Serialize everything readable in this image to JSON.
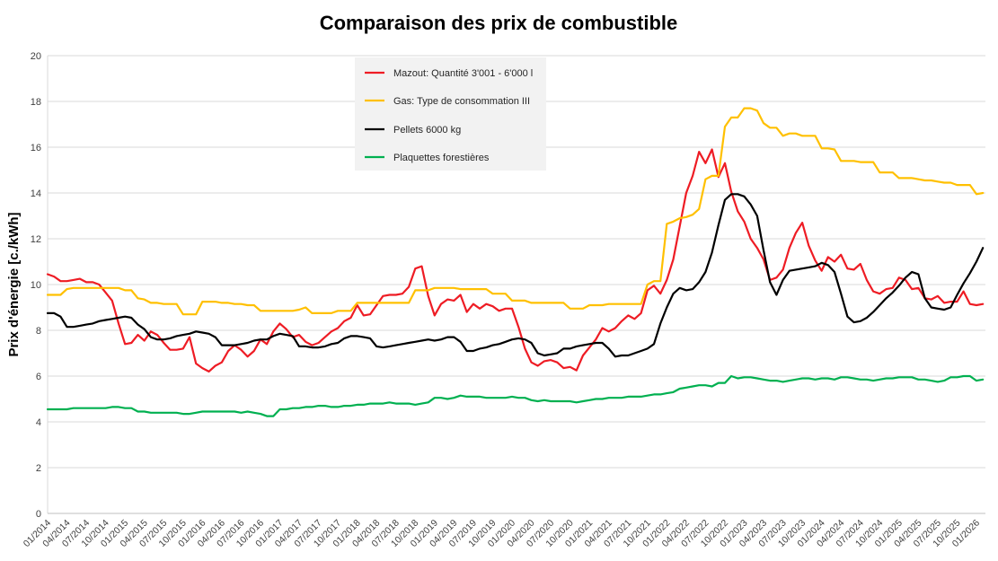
{
  "chart_data": {
    "type": "line",
    "title": "Comparaison des prix de combustible",
    "xlabel": "",
    "ylabel": "Prix d'énergie [c./kWh]",
    "ylim": [
      0,
      20
    ],
    "yticks": [
      0,
      2,
      4,
      6,
      8,
      10,
      12,
      14,
      16,
      18,
      20
    ],
    "grid": true,
    "legend": "top-center",
    "x": [
      "01/2014",
      "02/2014",
      "03/2014",
      "04/2014",
      "05/2014",
      "06/2014",
      "07/2014",
      "08/2014",
      "09/2014",
      "10/2014",
      "11/2014",
      "12/2014",
      "01/2015",
      "02/2015",
      "03/2015",
      "04/2015",
      "05/2015",
      "06/2015",
      "07/2015",
      "08/2015",
      "09/2015",
      "10/2015",
      "11/2015",
      "12/2015",
      "01/2016",
      "02/2016",
      "03/2016",
      "04/2016",
      "05/2016",
      "06/2016",
      "07/2016",
      "08/2016",
      "09/2016",
      "10/2016",
      "11/2016",
      "12/2016",
      "01/2017",
      "02/2017",
      "03/2017",
      "04/2017",
      "05/2017",
      "06/2017",
      "07/2017",
      "08/2017",
      "09/2017",
      "10/2017",
      "11/2017",
      "12/2017",
      "01/2018",
      "02/2018",
      "03/2018",
      "04/2018",
      "05/2018",
      "06/2018",
      "07/2018",
      "08/2018",
      "09/2018",
      "10/2018",
      "11/2018",
      "12/2018",
      "01/2019",
      "02/2019",
      "03/2019",
      "04/2019",
      "05/2019",
      "06/2019",
      "07/2019",
      "08/2019",
      "09/2019",
      "10/2019",
      "11/2019",
      "12/2019",
      "01/2020",
      "02/2020",
      "03/2020",
      "04/2020",
      "05/2020",
      "06/2020",
      "07/2020",
      "08/2020",
      "09/2020",
      "10/2020",
      "11/2020",
      "12/2020",
      "01/2021",
      "02/2021",
      "03/2021",
      "04/2021",
      "05/2021",
      "06/2021",
      "07/2021",
      "08/2021",
      "09/2021",
      "10/2021",
      "11/2021",
      "12/2021",
      "01/2022",
      "02/2022",
      "03/2022",
      "04/2022",
      "05/2022",
      "06/2022",
      "07/2022",
      "08/2022",
      "09/2022",
      "10/2022",
      "11/2022",
      "12/2022",
      "01/2023",
      "02/2023",
      "03/2023",
      "04/2023",
      "05/2023",
      "06/2023",
      "07/2023",
      "08/2023",
      "09/2023",
      "10/2023",
      "11/2023",
      "12/2023",
      "01/2024",
      "02/2024",
      "03/2024",
      "04/2024",
      "05/2024",
      "06/2024",
      "07/2024",
      "08/2024",
      "09/2024",
      "10/2024",
      "11/2024",
      "12/2024",
      "01/2025",
      "02/2025",
      "03/2025",
      "04/2025",
      "05/2025",
      "06/2025",
      "07/2025",
      "08/2025",
      "09/2025",
      "10/2025",
      "11/2025",
      "12/2025",
      "01/2026",
      "02/2026"
    ],
    "series": [
      {
        "name": "Mazout: Quantité 3'001 - 6'000 l",
        "color": "#ee1c24",
        "values": [
          10.45,
          10.35,
          10.15,
          10.15,
          10.2,
          10.25,
          10.1,
          10.1,
          10.0,
          9.65,
          9.3,
          8.3,
          7.4,
          7.45,
          7.8,
          7.55,
          7.95,
          7.8,
          7.45,
          7.15,
          7.15,
          7.2,
          7.7,
          6.55,
          6.35,
          6.2,
          6.45,
          6.6,
          7.1,
          7.35,
          7.15,
          6.85,
          7.1,
          7.6,
          7.4,
          7.95,
          8.3,
          8.05,
          7.7,
          7.8,
          7.5,
          7.35,
          7.45,
          7.7,
          7.95,
          8.1,
          8.4,
          8.55,
          9.1,
          8.65,
          8.7,
          9.1,
          9.5,
          9.55,
          9.55,
          9.6,
          9.9,
          10.7,
          10.8,
          9.5,
          8.65,
          9.15,
          9.35,
          9.3,
          9.55,
          8.8,
          9.15,
          8.95,
          9.15,
          9.05,
          8.85,
          8.95,
          8.95,
          8.15,
          7.2,
          6.6,
          6.45,
          6.65,
          6.7,
          6.6,
          6.35,
          6.4,
          6.25,
          6.9,
          7.25,
          7.6,
          8.1,
          7.95,
          8.1,
          8.4,
          8.65,
          8.5,
          8.75,
          9.75,
          9.95,
          9.6,
          10.2,
          11.1,
          12.55,
          14.0,
          14.75,
          15.8,
          15.3,
          15.9,
          14.7,
          15.3,
          14.05,
          13.2,
          12.75,
          12.0,
          11.6,
          11.1,
          10.2,
          10.3,
          10.65,
          11.6,
          12.25,
          12.7,
          11.7,
          11.05,
          10.6,
          11.2,
          11.0,
          11.3,
          10.7,
          10.65,
          10.9,
          10.2,
          9.7,
          9.6,
          9.8,
          9.85,
          10.3,
          10.2,
          9.8,
          9.85,
          9.4,
          9.35,
          9.5,
          9.2,
          9.25,
          9.25,
          9.7,
          9.15,
          9.1,
          9.15
        ]
      },
      {
        "name": "Gas: Type de consommation III",
        "color": "#ffc000",
        "values": [
          9.55,
          9.55,
          9.55,
          9.8,
          9.85,
          9.85,
          9.85,
          9.85,
          9.85,
          9.85,
          9.85,
          9.85,
          9.75,
          9.75,
          9.4,
          9.35,
          9.2,
          9.2,
          9.15,
          9.15,
          9.15,
          8.7,
          8.7,
          8.7,
          9.25,
          9.25,
          9.25,
          9.2,
          9.2,
          9.15,
          9.15,
          9.1,
          9.1,
          8.85,
          8.85,
          8.85,
          8.85,
          8.85,
          8.85,
          8.9,
          9.0,
          8.75,
          8.75,
          8.75,
          8.75,
          8.85,
          8.85,
          8.85,
          9.2,
          9.2,
          9.2,
          9.2,
          9.2,
          9.2,
          9.2,
          9.2,
          9.2,
          9.75,
          9.75,
          9.75,
          9.85,
          9.85,
          9.85,
          9.85,
          9.8,
          9.8,
          9.8,
          9.8,
          9.8,
          9.6,
          9.6,
          9.6,
          9.3,
          9.3,
          9.3,
          9.2,
          9.2,
          9.2,
          9.2,
          9.2,
          9.2,
          8.95,
          8.95,
          8.95,
          9.1,
          9.1,
          9.1,
          9.15,
          9.15,
          9.15,
          9.15,
          9.15,
          9.15,
          10.0,
          10.15,
          10.15,
          12.65,
          12.75,
          12.9,
          12.95,
          13.05,
          13.3,
          14.6,
          14.75,
          14.75,
          16.9,
          17.3,
          17.3,
          17.7,
          17.7,
          17.6,
          17.05,
          16.85,
          16.85,
          16.5,
          16.6,
          16.6,
          16.5,
          16.5,
          16.5,
          15.95,
          15.95,
          15.9,
          15.4,
          15.4,
          15.4,
          15.35,
          15.35,
          15.35,
          14.9,
          14.9,
          14.9,
          14.65,
          14.65,
          14.65,
          14.6,
          14.55,
          14.55,
          14.5,
          14.45,
          14.45,
          14.35,
          14.35,
          14.35,
          13.95,
          14.0
        ]
      },
      {
        "name": "Pellets 6000 kg",
        "color": "#000000",
        "values": [
          8.75,
          8.75,
          8.6,
          8.15,
          8.15,
          8.2,
          8.25,
          8.3,
          8.4,
          8.45,
          8.5,
          8.55,
          8.6,
          8.55,
          8.25,
          8.05,
          7.7,
          7.6,
          7.6,
          7.65,
          7.75,
          7.8,
          7.85,
          7.95,
          7.9,
          7.85,
          7.7,
          7.35,
          7.35,
          7.35,
          7.4,
          7.45,
          7.55,
          7.6,
          7.6,
          7.75,
          7.85,
          7.8,
          7.75,
          7.3,
          7.3,
          7.25,
          7.25,
          7.3,
          7.4,
          7.45,
          7.65,
          7.75,
          7.75,
          7.7,
          7.65,
          7.3,
          7.25,
          7.3,
          7.35,
          7.4,
          7.45,
          7.5,
          7.55,
          7.6,
          7.55,
          7.6,
          7.7,
          7.7,
          7.5,
          7.1,
          7.1,
          7.2,
          7.25,
          7.35,
          7.4,
          7.5,
          7.6,
          7.65,
          7.6,
          7.45,
          7.0,
          6.9,
          6.95,
          7.0,
          7.2,
          7.2,
          7.3,
          7.35,
          7.4,
          7.45,
          7.45,
          7.2,
          6.85,
          6.9,
          6.9,
          7.0,
          7.1,
          7.2,
          7.4,
          8.3,
          9.0,
          9.6,
          9.85,
          9.75,
          9.8,
          10.1,
          10.55,
          11.4,
          12.6,
          13.7,
          13.95,
          13.95,
          13.85,
          13.5,
          13.0,
          11.5,
          10.1,
          9.55,
          10.2,
          10.6,
          10.65,
          10.7,
          10.75,
          10.8,
          10.95,
          10.85,
          10.55,
          9.6,
          8.6,
          8.35,
          8.4,
          8.55,
          8.8,
          9.1,
          9.4,
          9.65,
          9.95,
          10.3,
          10.55,
          10.45,
          9.4,
          9.0,
          8.95,
          8.9,
          9.0,
          9.55,
          10.05,
          10.5,
          11.0,
          11.6
        ]
      },
      {
        "name": "Plaquettes forestières",
        "color": "#00b050",
        "values": [
          4.55,
          4.55,
          4.55,
          4.55,
          4.6,
          4.6,
          4.6,
          4.6,
          4.6,
          4.6,
          4.65,
          4.65,
          4.6,
          4.6,
          4.45,
          4.45,
          4.4,
          4.4,
          4.4,
          4.4,
          4.4,
          4.35,
          4.35,
          4.4,
          4.45,
          4.45,
          4.45,
          4.45,
          4.45,
          4.45,
          4.4,
          4.45,
          4.4,
          4.35,
          4.25,
          4.25,
          4.55,
          4.55,
          4.6,
          4.6,
          4.65,
          4.65,
          4.7,
          4.7,
          4.65,
          4.65,
          4.7,
          4.7,
          4.75,
          4.75,
          4.8,
          4.8,
          4.8,
          4.85,
          4.8,
          4.8,
          4.8,
          4.75,
          4.8,
          4.85,
          5.05,
          5.05,
          5.0,
          5.05,
          5.15,
          5.1,
          5.1,
          5.1,
          5.05,
          5.05,
          5.05,
          5.05,
          5.1,
          5.05,
          5.05,
          4.95,
          4.9,
          4.95,
          4.9,
          4.9,
          4.9,
          4.9,
          4.85,
          4.9,
          4.95,
          5.0,
          5.0,
          5.05,
          5.05,
          5.05,
          5.1,
          5.1,
          5.1,
          5.15,
          5.2,
          5.2,
          5.25,
          5.3,
          5.45,
          5.5,
          5.55,
          5.6,
          5.6,
          5.55,
          5.7,
          5.7,
          6.0,
          5.9,
          5.95,
          5.95,
          5.9,
          5.85,
          5.8,
          5.8,
          5.75,
          5.8,
          5.85,
          5.9,
          5.9,
          5.85,
          5.9,
          5.9,
          5.85,
          5.95,
          5.95,
          5.9,
          5.85,
          5.85,
          5.8,
          5.85,
          5.9,
          5.9,
          5.95,
          5.95,
          5.95,
          5.85,
          5.85,
          5.8,
          5.75,
          5.8,
          5.95,
          5.95,
          6.0,
          6.0,
          5.8,
          5.85
        ]
      }
    ]
  }
}
